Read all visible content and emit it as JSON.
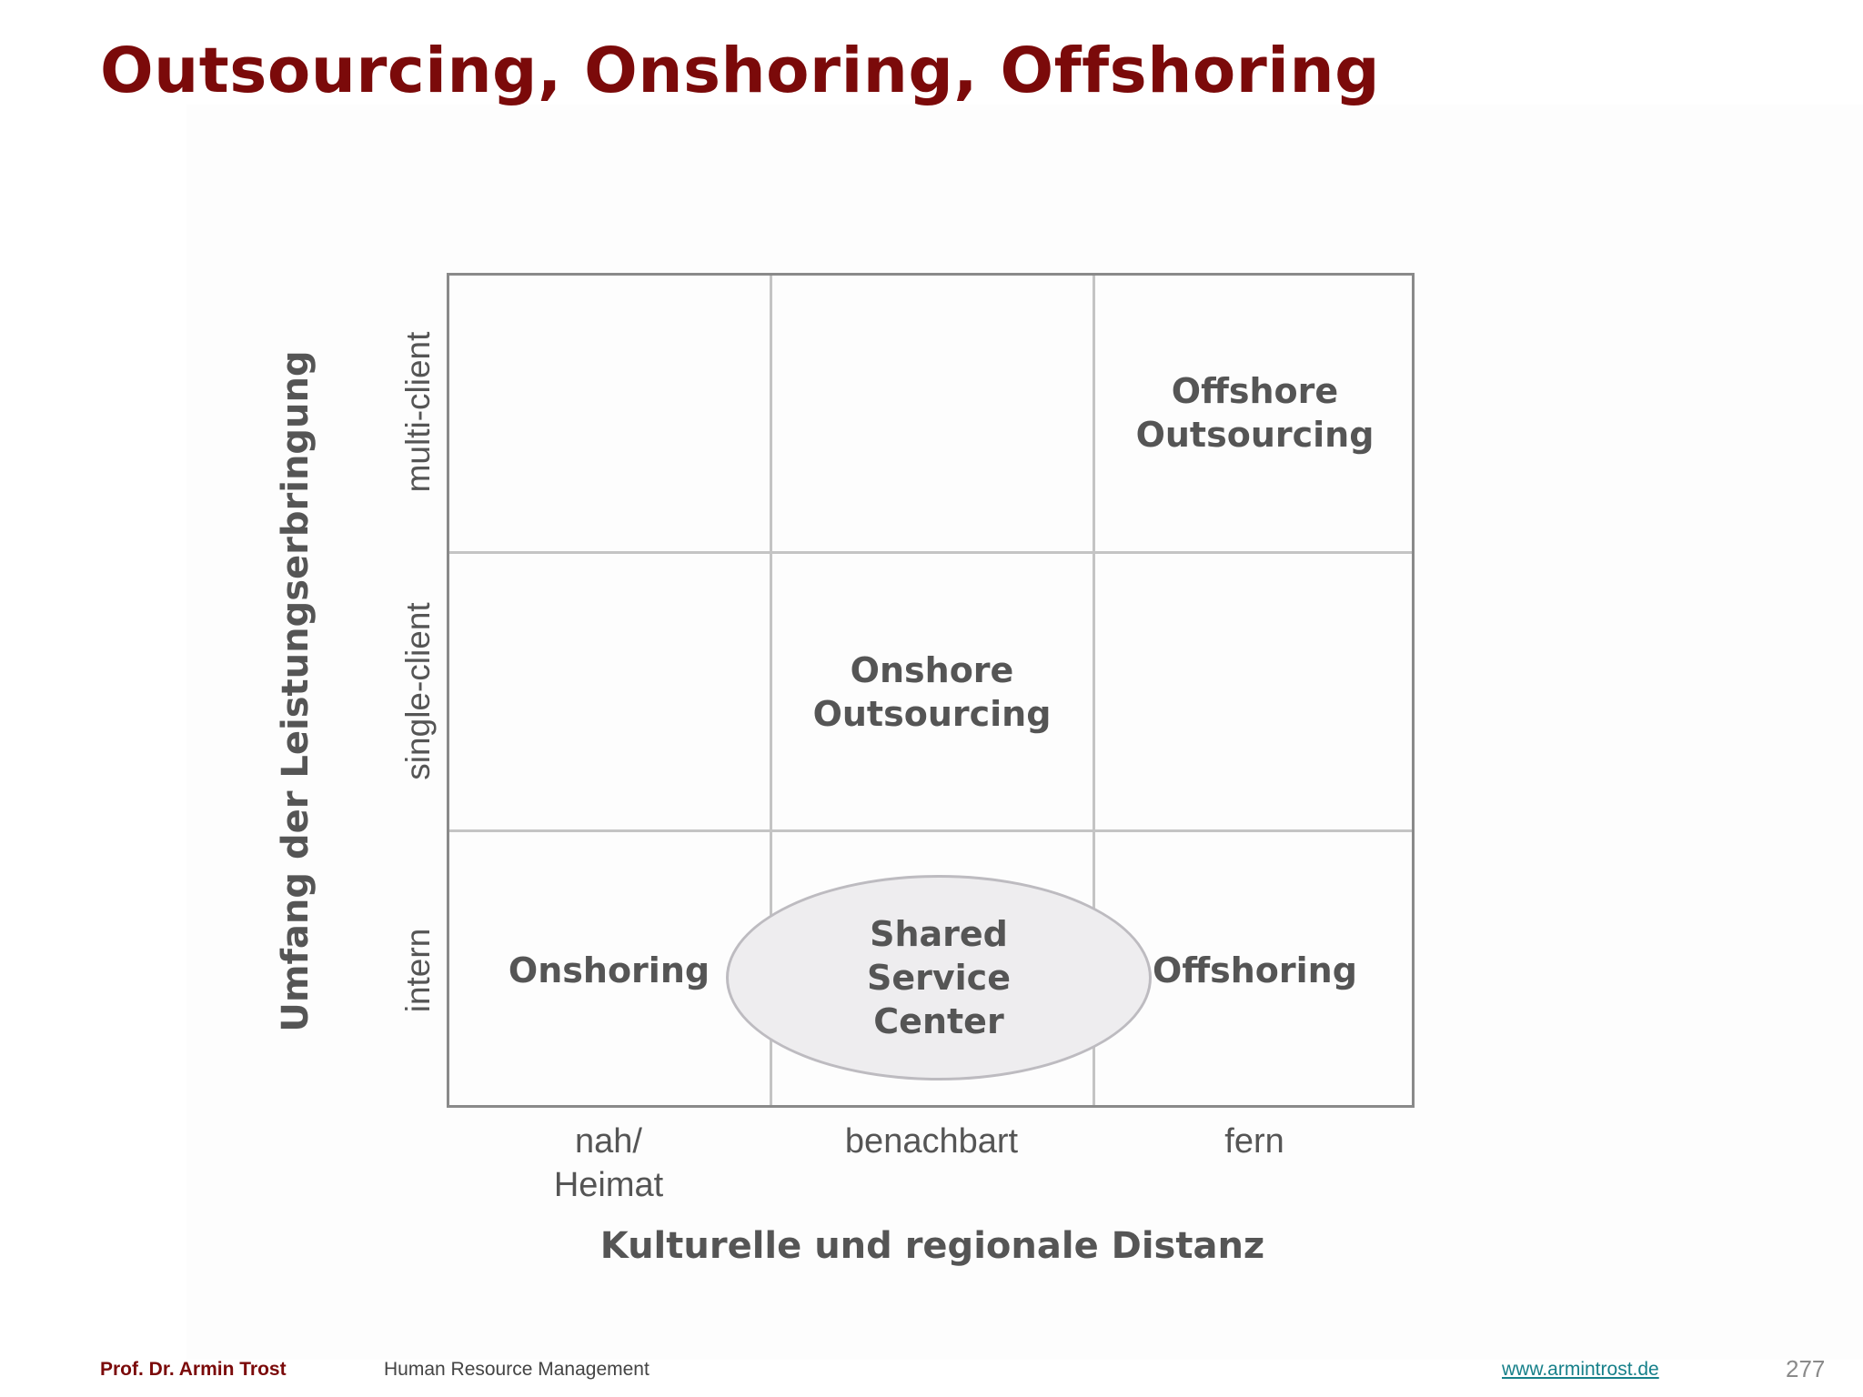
{
  "title": "Outsourcing, Onshoring, Offshoring",
  "matrix": {
    "y_axis_label": "Umfang der Leistungserbringung",
    "y_categories": [
      "multi-client",
      "single-client",
      "intern"
    ],
    "x_axis_label": "Kulturelle und regionale Distanz",
    "x_categories": [
      {
        "line1": "nah/",
        "line2": "Heimat"
      },
      {
        "line1": "benachbart"
      },
      {
        "line1": "fern"
      }
    ],
    "cells": {
      "offshore_outsourcing": {
        "line1": "Offshore",
        "line2": "Outsourcing"
      },
      "onshore_outsourcing": {
        "line1": "Onshore",
        "line2": "Outsourcing"
      },
      "onshoring": "Onshoring",
      "offshoring": "Offshoring",
      "shared_service_center": {
        "line1": "Shared",
        "line2": "Service",
        "line3": "Center"
      }
    }
  },
  "footer": {
    "author": "Prof. Dr. Armin Trost",
    "course": "Human Resource Management",
    "website": "www.armintrost.de",
    "page_number": "277"
  },
  "colors": {
    "title": "#7b0a0a",
    "text": "#555555",
    "grid_border": "#8a8a8a",
    "grid_lines": "#c4c4c4",
    "ellipse_fill": "#eeedef",
    "link": "#17808a"
  }
}
